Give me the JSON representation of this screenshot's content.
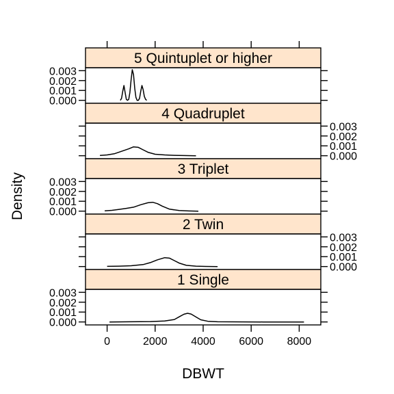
{
  "chart_data": {
    "type": "line",
    "title": "",
    "xlabel": "DBWT",
    "ylabel": "Density",
    "xlim": [
      -900,
      8900
    ],
    "ylim": [
      -0.0003,
      0.0033
    ],
    "x_ticks": [
      0,
      2000,
      4000,
      6000,
      8000
    ],
    "x_tick_labels": [
      "0",
      "2000",
      "4000",
      "6000",
      "8000"
    ],
    "y_ticks": [
      0,
      0.001,
      0.002,
      0.003
    ],
    "y_tick_labels": [
      "0.000",
      "0.001",
      "0.002",
      "0.003"
    ],
    "strip_color": "#ffe5cc",
    "line_color": "#000000",
    "panels": [
      {
        "strip": "5 Quintuplet or higher",
        "x": [
          550,
          600,
          650,
          700,
          750,
          800,
          850,
          900,
          950,
          1000,
          1050,
          1100,
          1150,
          1200,
          1250,
          1300,
          1350,
          1400,
          1450,
          1500,
          1550,
          1600,
          1650
        ],
        "y": [
          0.0,
          0.0002,
          0.0009,
          0.0015,
          0.0008,
          0.0001,
          0.0,
          0.0001,
          0.0008,
          0.0021,
          0.0031,
          0.0026,
          0.0012,
          0.0003,
          0.0,
          0.0,
          0.0002,
          0.0009,
          0.0015,
          0.0011,
          0.0004,
          0.0001,
          0.0
        ]
      },
      {
        "strip": "4 Quadruplet",
        "x": [
          -300,
          0,
          300,
          600,
          900,
          1100,
          1300,
          1500,
          1700,
          2000,
          2400,
          2800,
          3200,
          3700
        ],
        "y": [
          3e-05,
          8e-05,
          0.0002,
          0.00045,
          0.0007,
          0.0009,
          0.00085,
          0.0006,
          0.00035,
          0.00015,
          8e-05,
          4e-05,
          2e-05,
          0.0
        ]
      },
      {
        "strip": "3 Triplet",
        "x": [
          -100,
          200,
          500,
          800,
          1100,
          1400,
          1700,
          1900,
          2100,
          2300,
          2600,
          3000,
          3400,
          3800
        ],
        "y": [
          3e-05,
          8e-05,
          0.00018,
          0.00028,
          0.0004,
          0.00065,
          0.00085,
          0.0009,
          0.00075,
          0.0005,
          0.0002,
          6e-05,
          2e-05,
          0.0
        ]
      },
      {
        "strip": "2 Twin",
        "x": [
          0,
          500,
          1000,
          1500,
          1800,
          2100,
          2400,
          2600,
          2800,
          3000,
          3300,
          3700,
          4100,
          4600
        ],
        "y": [
          2e-05,
          4e-05,
          8e-05,
          0.0002,
          0.0004,
          0.00068,
          0.0009,
          0.00085,
          0.0006,
          0.00035,
          0.00012,
          4e-05,
          1e-05,
          0.0
        ]
      },
      {
        "strip": "1 Single",
        "x": [
          100,
          1000,
          1800,
          2400,
          2800,
          3000,
          3200,
          3350,
          3500,
          3700,
          3900,
          4200,
          4600,
          5200,
          6500,
          8200
        ],
        "y": [
          0.0,
          2e-05,
          4e-05,
          0.0001,
          0.00025,
          0.00052,
          0.00078,
          0.00088,
          0.0008,
          0.0005,
          0.00022,
          7e-05,
          2e-05,
          1e-05,
          0.0,
          0.0
        ]
      }
    ]
  }
}
